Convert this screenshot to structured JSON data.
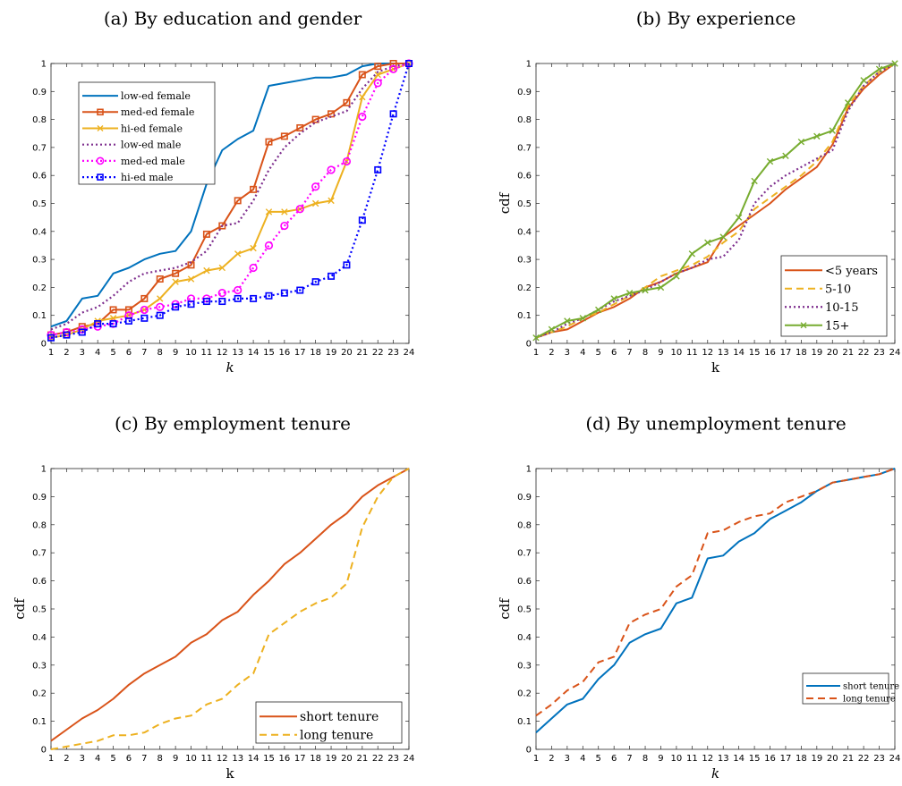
{
  "chart_data": [
    {
      "type": "line",
      "title": "(a) By education and gender",
      "xlabel": "k",
      "ylabel": "",
      "xlim": [
        1,
        24
      ],
      "ylim": [
        0,
        1
      ],
      "x_ticks": [
        "1",
        "2",
        "3",
        "4",
        "5",
        "6",
        "7",
        "8",
        "9",
        "10",
        "11",
        "12",
        "13",
        "14",
        "15",
        "16",
        "17",
        "18",
        "19",
        "20",
        "21",
        "22",
        "23",
        "24"
      ],
      "y_ticks": [
        "0",
        "0.1",
        "0.2",
        "0.3",
        "0.4",
        "0.5",
        "0.6",
        "0.7",
        "0.8",
        "0.9",
        "1"
      ],
      "legend_position": "top-left",
      "series": [
        {
          "name": "low-ed female",
          "color": "#0072bd",
          "style": "solid",
          "marker": "none",
          "values": [
            0.06,
            0.08,
            0.16,
            0.17,
            0.25,
            0.27,
            0.3,
            0.32,
            0.33,
            0.4,
            0.57,
            0.69,
            0.73,
            0.76,
            0.92,
            0.93,
            0.94,
            0.95,
            0.95,
            0.96,
            0.99,
            1.0,
            1.0,
            1.0
          ]
        },
        {
          "name": "med-ed female",
          "color": "#d95319",
          "style": "solid",
          "marker": "square",
          "values": [
            0.03,
            0.04,
            0.06,
            0.07,
            0.12,
            0.12,
            0.16,
            0.23,
            0.25,
            0.28,
            0.39,
            0.42,
            0.51,
            0.55,
            0.72,
            0.74,
            0.77,
            0.8,
            0.82,
            0.86,
            0.96,
            0.99,
            1.0,
            1.0
          ]
        },
        {
          "name": "hi-ed female",
          "color": "#edb120",
          "style": "solid",
          "marker": "x",
          "values": [
            0.02,
            0.03,
            0.05,
            0.08,
            0.09,
            0.1,
            0.12,
            0.16,
            0.22,
            0.23,
            0.26,
            0.27,
            0.32,
            0.34,
            0.47,
            0.47,
            0.48,
            0.5,
            0.51,
            0.65,
            0.88,
            0.96,
            0.98,
            1.0
          ]
        },
        {
          "name": "low-ed male",
          "color": "#7e2f8e",
          "style": "dotted",
          "marker": "none",
          "values": [
            0.05,
            0.07,
            0.11,
            0.13,
            0.17,
            0.22,
            0.25,
            0.26,
            0.27,
            0.29,
            0.33,
            0.42,
            0.43,
            0.51,
            0.62,
            0.7,
            0.75,
            0.79,
            0.81,
            0.83,
            0.91,
            0.97,
            0.99,
            1.0
          ]
        },
        {
          "name": "med-ed male",
          "color": "#ff00ff",
          "style": "dotted",
          "marker": "circle",
          "values": [
            0.03,
            0.04,
            0.05,
            0.06,
            0.07,
            0.1,
            0.12,
            0.13,
            0.14,
            0.16,
            0.16,
            0.18,
            0.19,
            0.27,
            0.35,
            0.42,
            0.48,
            0.56,
            0.62,
            0.65,
            0.81,
            0.93,
            0.98,
            1.0
          ]
        },
        {
          "name": "hi-ed male",
          "color": "#0000ff",
          "style": "dotted",
          "marker": "square",
          "values": [
            0.02,
            0.03,
            0.04,
            0.07,
            0.07,
            0.08,
            0.09,
            0.1,
            0.13,
            0.14,
            0.15,
            0.15,
            0.16,
            0.16,
            0.17,
            0.18,
            0.19,
            0.22,
            0.24,
            0.28,
            0.44,
            0.62,
            0.82,
            1.0
          ]
        }
      ]
    },
    {
      "type": "line",
      "title": "(b) By experience",
      "xlabel": "k",
      "ylabel": "cdf",
      "xlim": [
        1,
        24
      ],
      "ylim": [
        0,
        1
      ],
      "x_ticks": [
        "1",
        "2",
        "3",
        "4",
        "5",
        "6",
        "7",
        "8",
        "9",
        "10",
        "11",
        "12",
        "13",
        "14",
        "15",
        "16",
        "17",
        "18",
        "19",
        "20",
        "21",
        "22",
        "23",
        "24"
      ],
      "y_ticks": [
        "0",
        "0.1",
        "0.2",
        "0.3",
        "0.4",
        "0.5",
        "0.6",
        "0.7",
        "0.8",
        "0.9",
        "1"
      ],
      "legend_position": "bottom-right",
      "series": [
        {
          "name": "<5 years",
          "color": "#d95319",
          "style": "solid",
          "marker": "none",
          "values": [
            0.02,
            0.04,
            0.05,
            0.08,
            0.11,
            0.13,
            0.16,
            0.2,
            0.22,
            0.25,
            0.27,
            0.29,
            0.38,
            0.42,
            0.46,
            0.5,
            0.55,
            0.59,
            0.63,
            0.71,
            0.84,
            0.91,
            0.96,
            1.0
          ]
        },
        {
          "name": "5-10",
          "color": "#edb120",
          "style": "dashed",
          "marker": "none",
          "values": [
            0.02,
            0.04,
            0.06,
            0.09,
            0.11,
            0.14,
            0.17,
            0.2,
            0.24,
            0.26,
            0.28,
            0.31,
            0.36,
            0.4,
            0.48,
            0.52,
            0.56,
            0.6,
            0.65,
            0.72,
            0.85,
            0.92,
            0.97,
            1.0
          ]
        },
        {
          "name": "10-15",
          "color": "#7e2f8e",
          "style": "dotted",
          "marker": "none",
          "values": [
            0.02,
            0.04,
            0.07,
            0.09,
            0.12,
            0.15,
            0.17,
            0.19,
            0.22,
            0.25,
            0.27,
            0.3,
            0.31,
            0.37,
            0.5,
            0.56,
            0.6,
            0.63,
            0.66,
            0.69,
            0.83,
            0.92,
            0.97,
            1.0
          ]
        },
        {
          "name": "15+",
          "color": "#77ac30",
          "style": "solid",
          "marker": "x",
          "values": [
            0.02,
            0.05,
            0.08,
            0.09,
            0.12,
            0.16,
            0.18,
            0.19,
            0.2,
            0.24,
            0.32,
            0.36,
            0.38,
            0.45,
            0.58,
            0.65,
            0.67,
            0.72,
            0.74,
            0.76,
            0.86,
            0.94,
            0.98,
            1.0
          ]
        }
      ]
    },
    {
      "type": "line",
      "title": "(c) By employment tenure",
      "xlabel": "k",
      "ylabel": "cdf",
      "xlim": [
        1,
        24
      ],
      "ylim": [
        0,
        1
      ],
      "x_ticks": [
        "1",
        "2",
        "3",
        "4",
        "5",
        "6",
        "7",
        "8",
        "9",
        "10",
        "11",
        "12",
        "13",
        "14",
        "15",
        "16",
        "17",
        "18",
        "19",
        "20",
        "21",
        "22",
        "23",
        "24"
      ],
      "y_ticks": [
        "0",
        "0.1",
        "0.2",
        "0.3",
        "0.4",
        "0.5",
        "0.6",
        "0.7",
        "0.8",
        "0.9",
        "1"
      ],
      "legend_position": "bottom-right",
      "series": [
        {
          "name": "short tenure",
          "color": "#d95319",
          "style": "solid",
          "marker": "none",
          "values": [
            0.03,
            0.07,
            0.11,
            0.14,
            0.18,
            0.23,
            0.27,
            0.3,
            0.33,
            0.38,
            0.41,
            0.46,
            0.49,
            0.55,
            0.6,
            0.66,
            0.7,
            0.75,
            0.8,
            0.84,
            0.9,
            0.94,
            0.97,
            1.0
          ]
        },
        {
          "name": "long tenure",
          "color": "#edb120",
          "style": "dashed",
          "marker": "none",
          "values": [
            0.0,
            0.01,
            0.02,
            0.03,
            0.05,
            0.05,
            0.06,
            0.09,
            0.11,
            0.12,
            0.16,
            0.18,
            0.23,
            0.27,
            0.41,
            0.45,
            0.49,
            0.52,
            0.54,
            0.59,
            0.79,
            0.9,
            0.97,
            1.0
          ]
        }
      ]
    },
    {
      "type": "line",
      "title": "(d) By unemployment tenure",
      "xlabel": "k",
      "ylabel": "cdf",
      "xlim": [
        1,
        24
      ],
      "ylim": [
        0,
        1
      ],
      "x_ticks": [
        "1",
        "2",
        "3",
        "4",
        "5",
        "6",
        "7",
        "8",
        "9",
        "10",
        "11",
        "12",
        "13",
        "14",
        "15",
        "16",
        "17",
        "18",
        "19",
        "20",
        "21",
        "22",
        "23",
        "24"
      ],
      "y_ticks": [
        "0",
        "0.1",
        "0.2",
        "0.3",
        "0.4",
        "0.5",
        "0.6",
        "0.7",
        "0.8",
        "0.9",
        "1"
      ],
      "legend_position": "right",
      "series": [
        {
          "name": "short tenure",
          "color": "#0072bd",
          "style": "solid",
          "marker": "none",
          "values": [
            0.06,
            0.11,
            0.16,
            0.18,
            0.25,
            0.3,
            0.38,
            0.41,
            0.43,
            0.52,
            0.54,
            0.68,
            0.69,
            0.74,
            0.77,
            0.82,
            0.85,
            0.88,
            0.92,
            0.95,
            0.96,
            0.97,
            0.98,
            1.0
          ]
        },
        {
          "name": "long tenure",
          "color": "#d95319",
          "style": "dashed",
          "marker": "none",
          "values": [
            0.12,
            0.16,
            0.21,
            0.24,
            0.31,
            0.33,
            0.45,
            0.48,
            0.5,
            0.58,
            0.62,
            0.77,
            0.78,
            0.81,
            0.83,
            0.84,
            0.88,
            0.9,
            0.92,
            0.95,
            0.96,
            0.97,
            0.98,
            1.0
          ]
        }
      ]
    }
  ]
}
